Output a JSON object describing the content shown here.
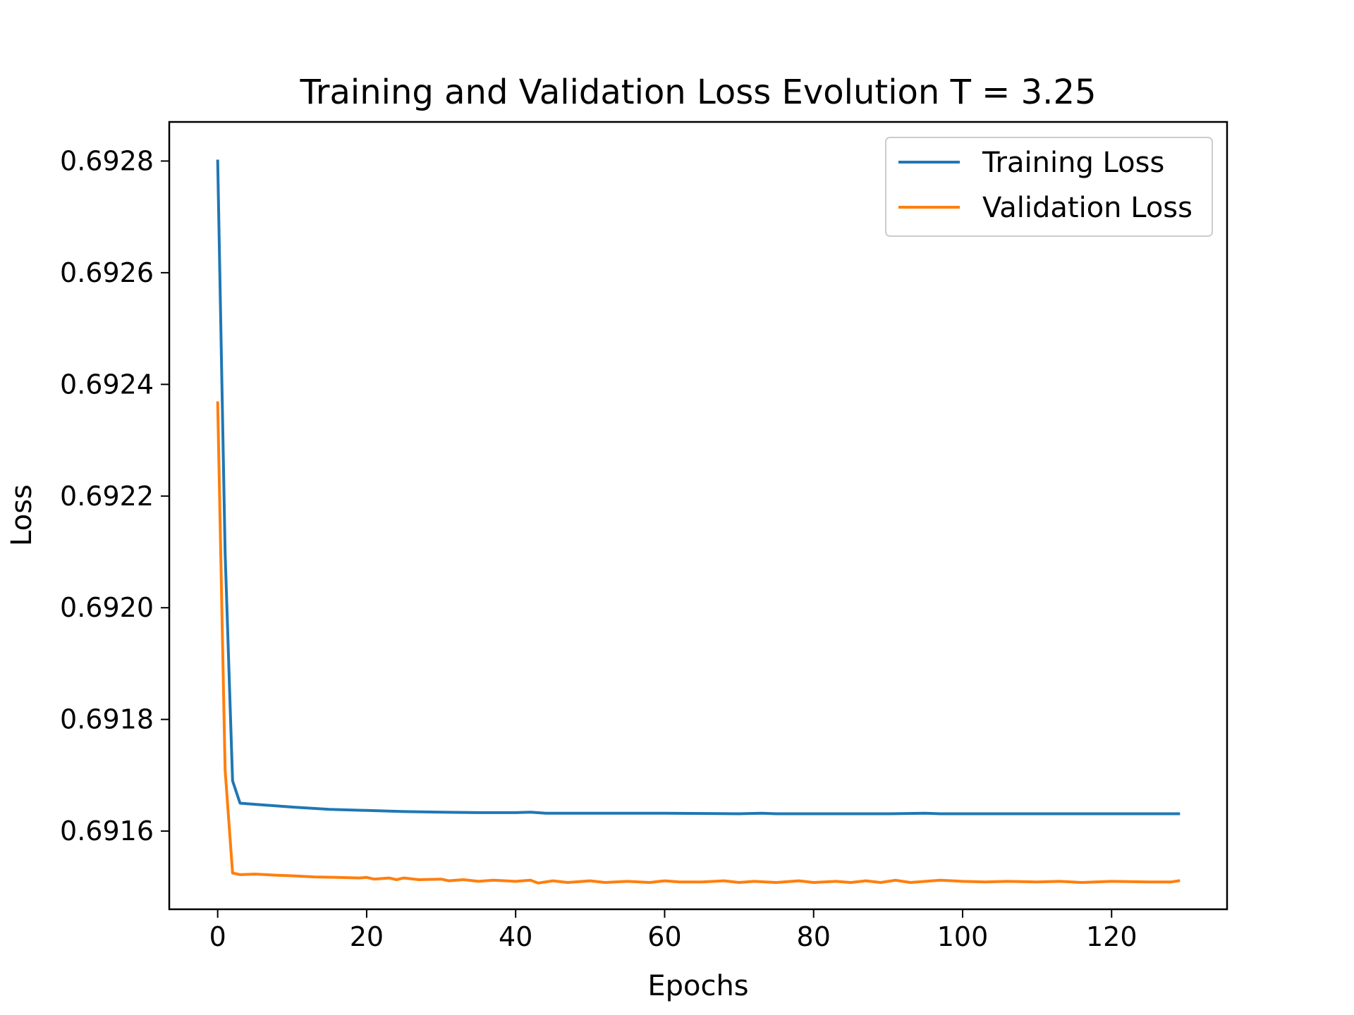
{
  "chart_data": {
    "type": "line",
    "title": "Training and Validation Loss Evolution T = 3.25",
    "xlabel": "Epochs",
    "ylabel": "Loss",
    "xlim": [
      -6.5,
      135.5
    ],
    "ylim": [
      0.69146,
      0.69287
    ],
    "xticks": [
      0,
      20,
      40,
      60,
      80,
      100,
      120
    ],
    "yticks": [
      0.6916,
      0.6918,
      0.692,
      0.6922,
      0.6924,
      0.6926,
      0.6928
    ],
    "ytick_labels": [
      "0.6916",
      "0.6918",
      "0.6920",
      "0.6922",
      "0.6924",
      "0.6926",
      "0.6928"
    ],
    "grid": false,
    "legend_position": "upper right",
    "series": [
      {
        "name": "Training Loss",
        "color": "#1f77b4",
        "points": [
          [
            0,
            0.6928
          ],
          [
            1,
            0.6921
          ],
          [
            2,
            0.69169
          ],
          [
            3,
            0.69165
          ],
          [
            5,
            0.691648
          ],
          [
            10,
            0.691643
          ],
          [
            15,
            0.691639
          ],
          [
            20,
            0.691637
          ],
          [
            25,
            0.691635
          ],
          [
            30,
            0.691634
          ],
          [
            35,
            0.691633
          ],
          [
            40,
            0.691633
          ],
          [
            42,
            0.691634
          ],
          [
            44,
            0.691632
          ],
          [
            50,
            0.691632
          ],
          [
            60,
            0.691632
          ],
          [
            70,
            0.691631
          ],
          [
            73,
            0.691632
          ],
          [
            75,
            0.691631
          ],
          [
            80,
            0.691631
          ],
          [
            90,
            0.691631
          ],
          [
            95,
            0.691632
          ],
          [
            97,
            0.691631
          ],
          [
            100,
            0.691631
          ],
          [
            110,
            0.691631
          ],
          [
            120,
            0.691631
          ],
          [
            129,
            0.691631
          ]
        ]
      },
      {
        "name": "Validation Loss",
        "color": "#ff7f0e",
        "points": [
          [
            0,
            0.692367
          ],
          [
            1,
            0.69171
          ],
          [
            2,
            0.691525
          ],
          [
            3,
            0.691522
          ],
          [
            5,
            0.691523
          ],
          [
            8,
            0.691521
          ],
          [
            10,
            0.69152
          ],
          [
            13,
            0.691518
          ],
          [
            16,
            0.691517
          ],
          [
            19,
            0.691516
          ],
          [
            20,
            0.691517
          ],
          [
            21,
            0.691514
          ],
          [
            23,
            0.691516
          ],
          [
            24,
            0.691513
          ],
          [
            25,
            0.691516
          ],
          [
            27,
            0.691513
          ],
          [
            30,
            0.691514
          ],
          [
            31,
            0.691511
          ],
          [
            33,
            0.691513
          ],
          [
            35,
            0.69151
          ],
          [
            37,
            0.691512
          ],
          [
            40,
            0.69151
          ],
          [
            42,
            0.691512
          ],
          [
            43,
            0.691507
          ],
          [
            45,
            0.691511
          ],
          [
            47,
            0.691508
          ],
          [
            50,
            0.691511
          ],
          [
            52,
            0.691508
          ],
          [
            55,
            0.69151
          ],
          [
            58,
            0.691508
          ],
          [
            60,
            0.691511
          ],
          [
            62,
            0.691509
          ],
          [
            65,
            0.691509
          ],
          [
            68,
            0.691511
          ],
          [
            70,
            0.691508
          ],
          [
            72,
            0.69151
          ],
          [
            75,
            0.691508
          ],
          [
            78,
            0.691511
          ],
          [
            80,
            0.691508
          ],
          [
            83,
            0.69151
          ],
          [
            85,
            0.691508
          ],
          [
            87,
            0.691511
          ],
          [
            89,
            0.691508
          ],
          [
            91,
            0.691512
          ],
          [
            93,
            0.691508
          ],
          [
            95,
            0.69151
          ],
          [
            97,
            0.691512
          ],
          [
            100,
            0.69151
          ],
          [
            103,
            0.691509
          ],
          [
            106,
            0.69151
          ],
          [
            110,
            0.691509
          ],
          [
            113,
            0.69151
          ],
          [
            116,
            0.691508
          ],
          [
            120,
            0.69151
          ],
          [
            125,
            0.691509
          ],
          [
            128,
            0.691509
          ],
          [
            129,
            0.691511
          ]
        ]
      }
    ]
  }
}
